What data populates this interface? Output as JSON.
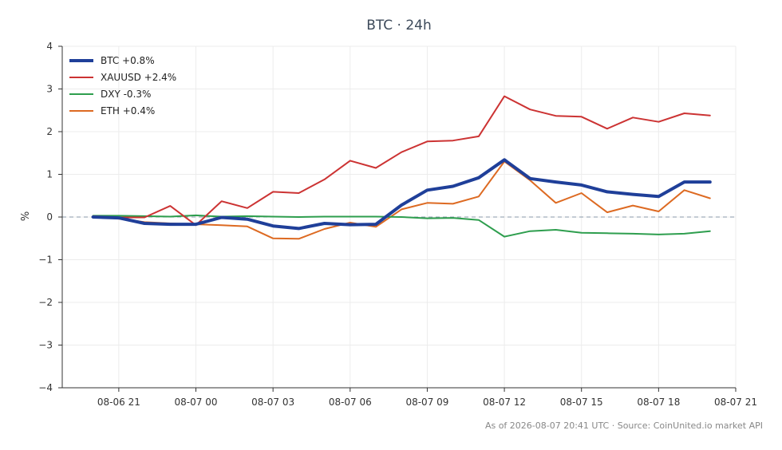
{
  "chart_data": {
    "type": "line",
    "title": "BTC · 24h",
    "ylabel": "%",
    "xlabel": "",
    "ylim": [
      -4,
      4
    ],
    "yticks": [
      4,
      3,
      2,
      1,
      0,
      -1,
      -2,
      -3,
      -4
    ],
    "ytick_labels": [
      "4",
      "3",
      "2",
      "1",
      "0",
      "−1",
      "−2",
      "−3",
      "−4"
    ],
    "xtick_labels": [
      "08-06 21",
      "08-07 00",
      "08-07 03",
      "08-07 06",
      "08-07 09",
      "08-07 12",
      "08-07 15",
      "08-07 18",
      "08-07 21"
    ],
    "xtick_hours": [
      21,
      24,
      27,
      30,
      33,
      36,
      39,
      42,
      45
    ],
    "xlim_hours": [
      18.8,
      45.0
    ],
    "x_hours": [
      20,
      21,
      22,
      23,
      24,
      25,
      26,
      27,
      28,
      29,
      30,
      31,
      32,
      33,
      34,
      35,
      36,
      37,
      38,
      39,
      40,
      41,
      42,
      43,
      44
    ],
    "grid": true,
    "legend_position": "top-left",
    "zero_line": true,
    "series": [
      {
        "name": "BTC +0.8%",
        "color": "#1f3f99",
        "width": 4,
        "values": [
          0.0,
          -0.02,
          -0.15,
          -0.17,
          -0.17,
          -0.01,
          -0.05,
          -0.21,
          -0.27,
          -0.15,
          -0.18,
          -0.17,
          0.28,
          0.63,
          0.72,
          0.92,
          1.34,
          0.9,
          0.82,
          0.75,
          0.59,
          0.53,
          0.48,
          0.82,
          0.82
        ]
      },
      {
        "name": "XAUUSD +2.4%",
        "color": "#cc3333",
        "width": 2,
        "values": [
          0.02,
          -0.01,
          -0.01,
          0.26,
          -0.19,
          0.37,
          0.21,
          0.59,
          0.56,
          0.88,
          1.32,
          1.15,
          1.52,
          1.77,
          1.79,
          1.89,
          2.83,
          2.52,
          2.37,
          2.35,
          2.07,
          2.33,
          2.23,
          2.43,
          2.38
        ]
      },
      {
        "name": "DXY -0.3%",
        "color": "#2e9e4e",
        "width": 2,
        "values": [
          0.03,
          0.03,
          0.02,
          0.01,
          0.04,
          0.01,
          0.02,
          0.01,
          0.0,
          0.01,
          0.01,
          0.01,
          0.0,
          -0.03,
          -0.02,
          -0.07,
          -0.46,
          -0.33,
          -0.3,
          -0.37,
          -0.38,
          -0.39,
          -0.41,
          -0.39,
          -0.33
        ]
      },
      {
        "name": "ETH +0.4%",
        "color": "#dd6a22",
        "width": 2,
        "values": [
          0.01,
          -0.04,
          -0.12,
          -0.15,
          -0.17,
          -0.19,
          -0.22,
          -0.5,
          -0.51,
          -0.28,
          -0.13,
          -0.23,
          0.18,
          0.33,
          0.31,
          0.48,
          1.3,
          0.86,
          0.33,
          0.56,
          0.11,
          0.27,
          0.13,
          0.63,
          0.44
        ]
      }
    ]
  },
  "footer": "As of 2026-08-07 20:41 UTC · Source: CoinUnited.io market API"
}
